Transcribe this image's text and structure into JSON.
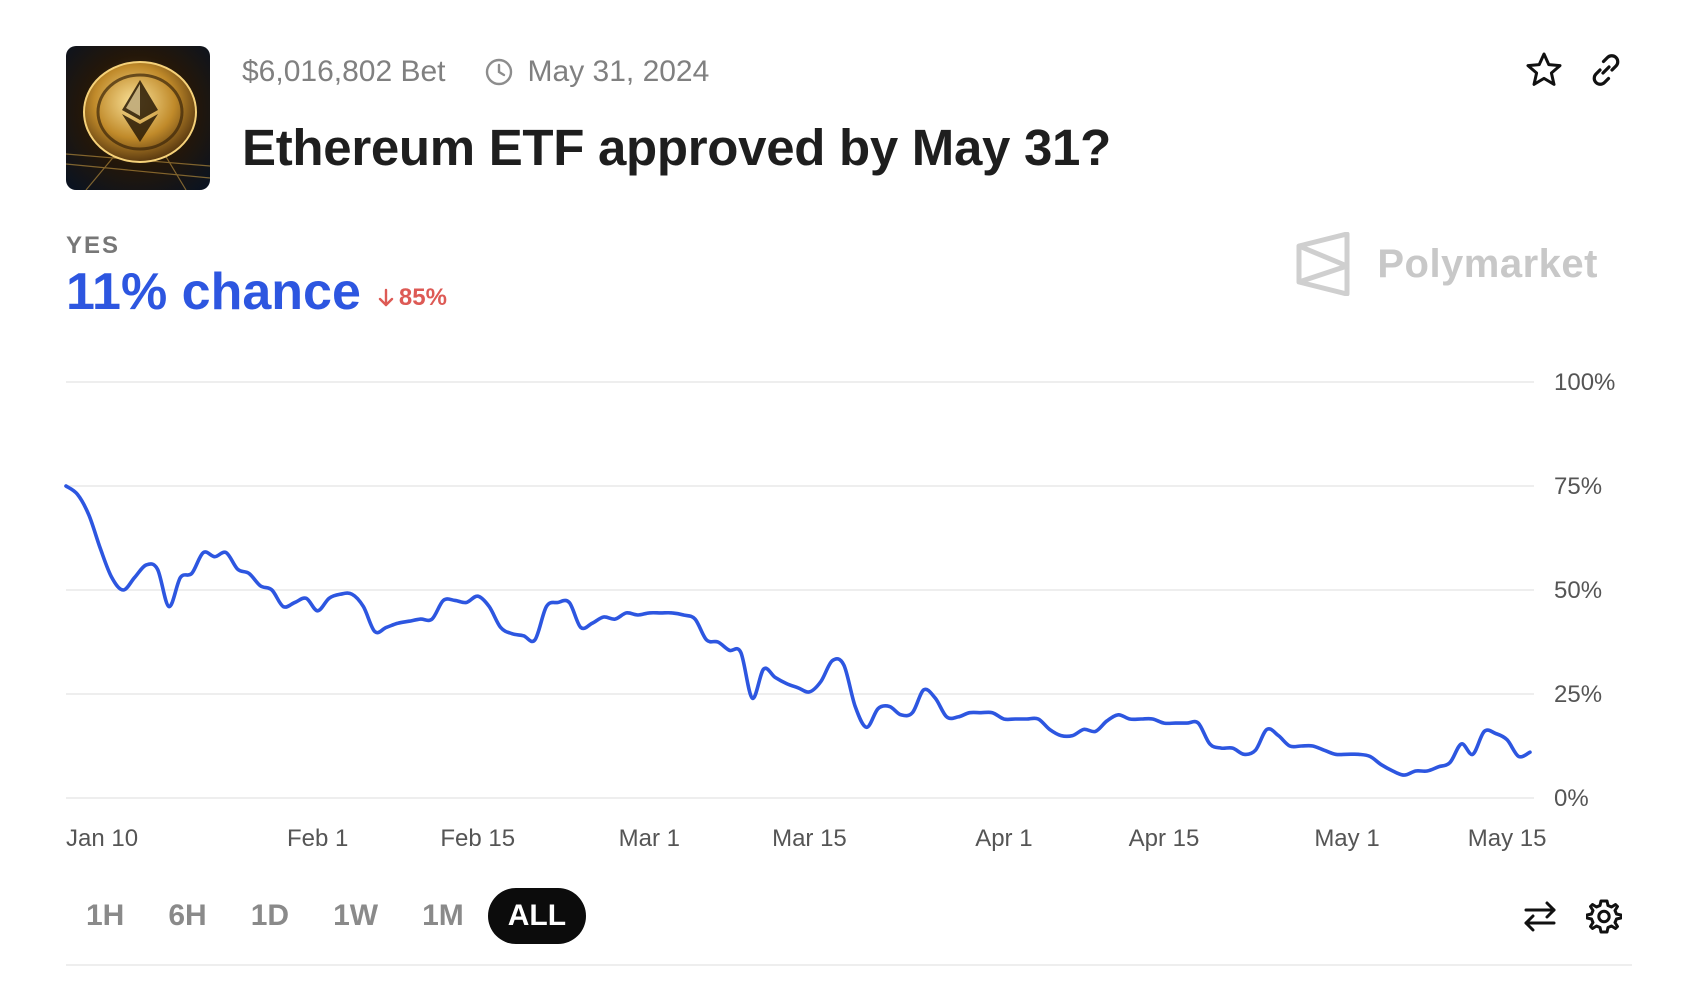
{
  "header": {
    "volume": "$6,016,802 Bet",
    "end_date": "May 31, 2024",
    "title": "Ethereum ETF approved by May 31?",
    "thumbnail_icon": "ethereum-coin-image",
    "actions": [
      "star-icon",
      "link-icon"
    ]
  },
  "outcome": {
    "label": "YES",
    "chance_text": "11% chance",
    "change_text": "85%",
    "change_direction": "down",
    "chance_color": "#2d56e0",
    "change_color": "#dd5a55"
  },
  "brand": {
    "name": "Polymarket"
  },
  "range_buttons": [
    {
      "label": "1H",
      "active": false
    },
    {
      "label": "6H",
      "active": false
    },
    {
      "label": "1D",
      "active": false
    },
    {
      "label": "1W",
      "active": false
    },
    {
      "label": "1M",
      "active": false
    },
    {
      "label": "ALL",
      "active": true
    }
  ],
  "bottom_actions": [
    "swap-icon",
    "settings-icon"
  ],
  "chart_data": {
    "type": "line",
    "xlabel": "",
    "ylabel": "",
    "x_ticks": [
      "Jan 10",
      "Feb 1",
      "Feb 15",
      "Mar 1",
      "Mar 15",
      "Apr 1",
      "Apr 15",
      "May 1",
      "May 15"
    ],
    "y_ticks": [
      "100%",
      "75%",
      "50%",
      "25%",
      "0%"
    ],
    "ylim": [
      0,
      100
    ],
    "grid": true,
    "line_color": "#2d56e0",
    "series": [
      {
        "values": [
          [
            "2024-01-10",
            75
          ],
          [
            "2024-01-11",
            73
          ],
          [
            "2024-01-12",
            68
          ],
          [
            "2024-01-13",
            60
          ],
          [
            "2024-01-14",
            53
          ],
          [
            "2024-01-15",
            50
          ],
          [
            "2024-01-16",
            53
          ],
          [
            "2024-01-17",
            56
          ],
          [
            "2024-01-18",
            55
          ],
          [
            "2024-01-19",
            46
          ],
          [
            "2024-01-20",
            53
          ],
          [
            "2024-01-21",
            54
          ],
          [
            "2024-01-22",
            59
          ],
          [
            "2024-01-23",
            58
          ],
          [
            "2024-01-24",
            59
          ],
          [
            "2024-01-25",
            55
          ],
          [
            "2024-01-26",
            54
          ],
          [
            "2024-01-27",
            51
          ],
          [
            "2024-01-28",
            50
          ],
          [
            "2024-01-29",
            46
          ],
          [
            "2024-01-30",
            47
          ],
          [
            "2024-01-31",
            48
          ],
          [
            "2024-02-01",
            45
          ],
          [
            "2024-02-02",
            48
          ],
          [
            "2024-02-03",
            49
          ],
          [
            "2024-02-04",
            49
          ],
          [
            "2024-02-05",
            46
          ],
          [
            "2024-02-06",
            40
          ],
          [
            "2024-02-07",
            41
          ],
          [
            "2024-02-08",
            42
          ],
          [
            "2024-02-09",
            42.5
          ],
          [
            "2024-02-10",
            43
          ],
          [
            "2024-02-11",
            43
          ],
          [
            "2024-02-12",
            47.5
          ],
          [
            "2024-02-13",
            47.5
          ],
          [
            "2024-02-14",
            47
          ],
          [
            "2024-02-15",
            48.5
          ],
          [
            "2024-02-16",
            46
          ],
          [
            "2024-02-17",
            41
          ],
          [
            "2024-02-18",
            39.5
          ],
          [
            "2024-02-19",
            39
          ],
          [
            "2024-02-20",
            38
          ],
          [
            "2024-02-21",
            46
          ],
          [
            "2024-02-22",
            47
          ],
          [
            "2024-02-23",
            47
          ],
          [
            "2024-02-24",
            41
          ],
          [
            "2024-02-25",
            42
          ],
          [
            "2024-02-26",
            43.5
          ],
          [
            "2024-02-27",
            43
          ],
          [
            "2024-02-28",
            44.5
          ],
          [
            "2024-02-29",
            44
          ],
          [
            "2024-03-01",
            44.5
          ],
          [
            "2024-03-02",
            44.5
          ],
          [
            "2024-03-03",
            44.5
          ],
          [
            "2024-03-04",
            44
          ],
          [
            "2024-03-05",
            43
          ],
          [
            "2024-03-06",
            38
          ],
          [
            "2024-03-07",
            37.5
          ],
          [
            "2024-03-08",
            35.5
          ],
          [
            "2024-03-09",
            35
          ],
          [
            "2024-03-10",
            24
          ],
          [
            "2024-03-11",
            31
          ],
          [
            "2024-03-12",
            29
          ],
          [
            "2024-03-13",
            27.5
          ],
          [
            "2024-03-14",
            26.5
          ],
          [
            "2024-03-15",
            25.5
          ],
          [
            "2024-03-16",
            28
          ],
          [
            "2024-03-17",
            33
          ],
          [
            "2024-03-18",
            32
          ],
          [
            "2024-03-19",
            22
          ],
          [
            "2024-03-20",
            17
          ],
          [
            "2024-03-21",
            21.5
          ],
          [
            "2024-03-22",
            22
          ],
          [
            "2024-03-23",
            20
          ],
          [
            "2024-03-24",
            20.5
          ],
          [
            "2024-03-25",
            26
          ],
          [
            "2024-03-26",
            24
          ],
          [
            "2024-03-27",
            19.5
          ],
          [
            "2024-03-28",
            19.5
          ],
          [
            "2024-03-29",
            20.5
          ],
          [
            "2024-03-30",
            20.5
          ],
          [
            "2024-03-31",
            20.5
          ],
          [
            "2024-04-01",
            19
          ],
          [
            "2024-04-02",
            19
          ],
          [
            "2024-04-03",
            19
          ],
          [
            "2024-04-04",
            19
          ],
          [
            "2024-04-05",
            16.5
          ],
          [
            "2024-04-06",
            15
          ],
          [
            "2024-04-07",
            15
          ],
          [
            "2024-04-08",
            16.5
          ],
          [
            "2024-04-09",
            16
          ],
          [
            "2024-04-10",
            18.5
          ],
          [
            "2024-04-11",
            20
          ],
          [
            "2024-04-12",
            19
          ],
          [
            "2024-04-13",
            19
          ],
          [
            "2024-04-14",
            19
          ],
          [
            "2024-04-15",
            18
          ],
          [
            "2024-04-16",
            18
          ],
          [
            "2024-04-17",
            18
          ],
          [
            "2024-04-18",
            18
          ],
          [
            "2024-04-19",
            13
          ],
          [
            "2024-04-20",
            12
          ],
          [
            "2024-04-21",
            12
          ],
          [
            "2024-04-22",
            10.5
          ],
          [
            "2024-04-23",
            11.5
          ],
          [
            "2024-04-24",
            16.5
          ],
          [
            "2024-04-25",
            15
          ],
          [
            "2024-04-26",
            12.5
          ],
          [
            "2024-04-27",
            12.5
          ],
          [
            "2024-04-28",
            12.5
          ],
          [
            "2024-04-29",
            11.5
          ],
          [
            "2024-04-30",
            10.5
          ],
          [
            "2024-05-01",
            10.5
          ],
          [
            "2024-05-02",
            10.5
          ],
          [
            "2024-05-03",
            10
          ],
          [
            "2024-05-04",
            8
          ],
          [
            "2024-05-05",
            6.5
          ],
          [
            "2024-05-06",
            5.5
          ],
          [
            "2024-05-07",
            6.5
          ],
          [
            "2024-05-08",
            6.5
          ],
          [
            "2024-05-09",
            7.5
          ],
          [
            "2024-05-10",
            8.5
          ],
          [
            "2024-05-11",
            13
          ],
          [
            "2024-05-12",
            10.5
          ],
          [
            "2024-05-13",
            16
          ],
          [
            "2024-05-14",
            15.5
          ],
          [
            "2024-05-15",
            14
          ],
          [
            "2024-05-16",
            10
          ],
          [
            "2024-05-17",
            11
          ]
        ]
      }
    ]
  }
}
